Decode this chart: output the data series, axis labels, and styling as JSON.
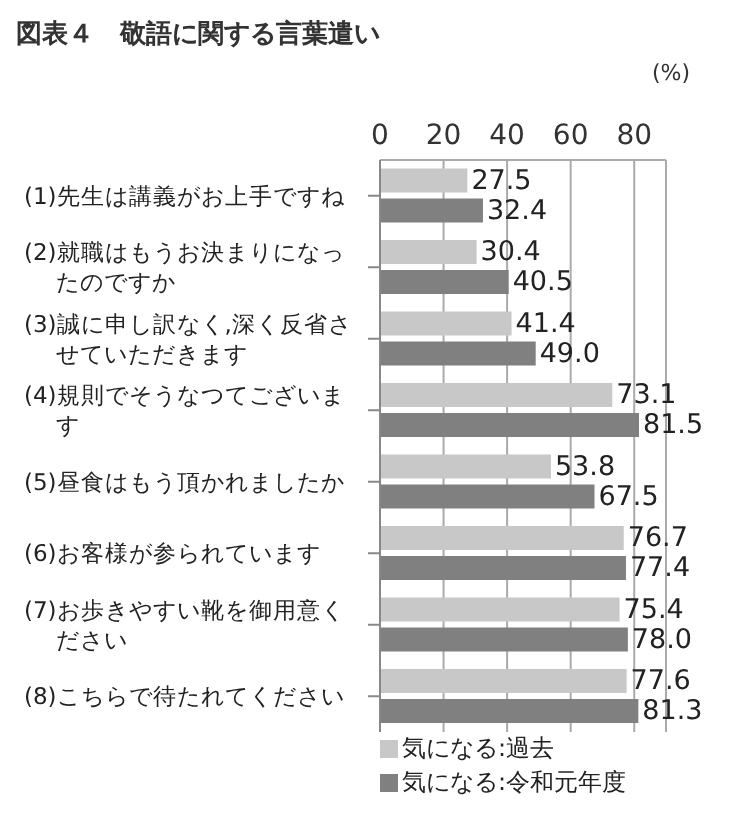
{
  "chart_data": {
    "type": "bar",
    "orientation": "horizontal",
    "title": "図表４　敬語に関する言葉遣い",
    "xlabel": "(%)",
    "categories": [
      "(1)先生は講義がお上手ですね",
      "(2)就職はもうお決まりになったのですか",
      "(3)誠に申し訳なく,深く反省させていただきます",
      "(4)規則でそうなつてございます",
      "(5)昼食はもう頂かれましたか",
      "(6)お客様が参られています",
      "(7)お歩きやすい靴を御用意ください",
      "(8)こちらで待たれてください"
    ],
    "series": [
      {
        "name": "気になる:過去",
        "color": "#c8c8c8",
        "values": [
          27.5,
          30.4,
          41.4,
          73.1,
          53.8,
          76.7,
          75.4,
          77.6
        ],
        "value_labels": [
          "27.5",
          "30.4",
          "41.4",
          "73.1",
          "53.8",
          "76.7",
          "75.4",
          "77.6"
        ]
      },
      {
        "name": "気になる:令和元年度",
        "color": "#808080",
        "values": [
          32.4,
          40.5,
          49.0,
          81.5,
          67.5,
          77.4,
          78.0,
          81.3
        ],
        "value_labels": [
          "32.4",
          "40.5",
          "49.0",
          "81.5",
          "67.5",
          "77.4",
          "78.0",
          "81.3"
        ]
      }
    ],
    "xlim": [
      0,
      90
    ],
    "xticks": [
      0,
      20,
      40,
      60,
      80
    ],
    "grid": "x",
    "legend": "bottom"
  }
}
